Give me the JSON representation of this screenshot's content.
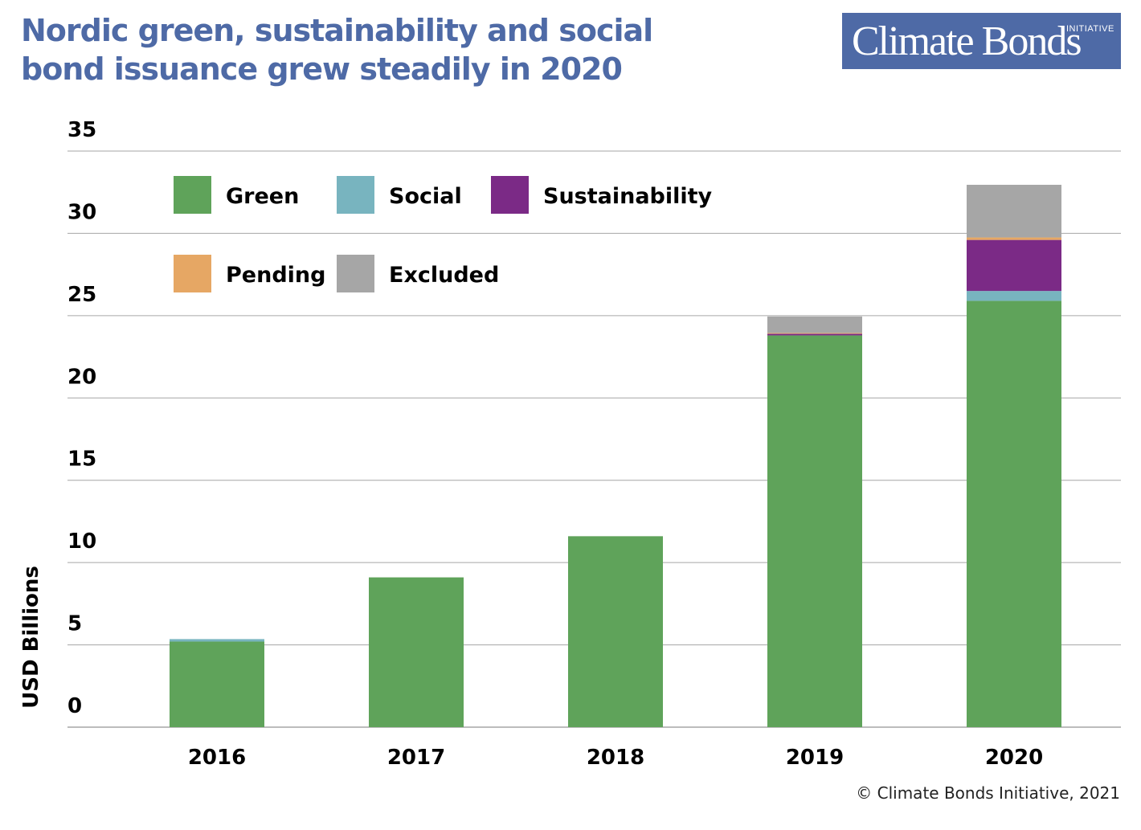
{
  "header": {
    "title_line1": "Nordic green, sustainability and social",
    "title_line2": "bond issuance grew steadily in 2020",
    "logo_text": "Climate Bonds",
    "logo_subtext": "INITIATIVE"
  },
  "footer": {
    "credit": "© Climate Bonds Initiative, 2021"
  },
  "colors": {
    "title": "#4e6aa6",
    "logo_bg": "#4e6aa6",
    "gridline": "#a6a6a6",
    "axis_text": "#000000"
  },
  "chart_data": {
    "type": "bar",
    "stacked": true,
    "title": "Nordic green, sustainability and social bond issuance grew steadily in 2020",
    "xlabel": "",
    "ylabel": "USD Billions",
    "ylim": [
      0,
      35
    ],
    "yticks": [
      0,
      5,
      10,
      15,
      20,
      25,
      30,
      35
    ],
    "grid": true,
    "legend_position": "top-left",
    "categories": [
      "2016",
      "2017",
      "2018",
      "2019",
      "2020"
    ],
    "series": [
      {
        "name": "Green",
        "color": "#5fa35a",
        "values": [
          5.2,
          9.1,
          11.6,
          23.8,
          25.9
        ]
      },
      {
        "name": "Social",
        "color": "#78b4bf",
        "values": [
          0.15,
          0,
          0,
          0,
          0.6
        ]
      },
      {
        "name": "Sustainability",
        "color": "#7b2a86",
        "values": [
          0,
          0,
          0,
          0.1,
          3.1
        ]
      },
      {
        "name": "Pending",
        "color": "#e6a764",
        "values": [
          0,
          0,
          0,
          0.05,
          0.15
        ]
      },
      {
        "name": "Excluded",
        "color": "#a6a6a6",
        "values": [
          0,
          0,
          0,
          1.0,
          3.2
        ]
      }
    ]
  }
}
